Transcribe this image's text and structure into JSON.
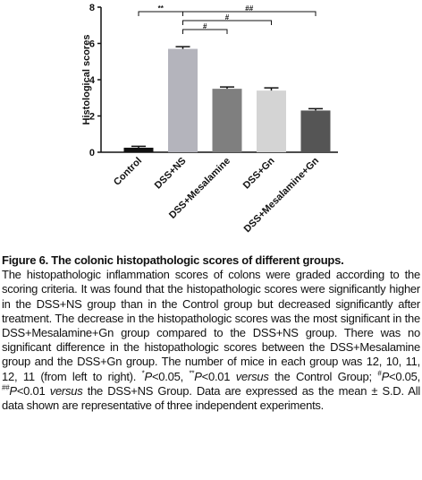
{
  "chart_data": {
    "type": "bar",
    "y_label": "Histological scores",
    "categories": [
      "Control",
      "DSS+NS",
      "DSS+Mesalamine",
      "DSS+Gn",
      "DSS+Mesalamine+Gn"
    ],
    "values": [
      0.25,
      5.7,
      3.5,
      3.4,
      2.3
    ],
    "errors": [
      0.08,
      0.12,
      0.1,
      0.15,
      0.1
    ],
    "colors": [
      "#111111",
      "#b4b4bc",
      "#7f7f7f",
      "#d4d4d4",
      "#555555"
    ],
    "ylim": [
      0,
      8
    ],
    "yticks": [
      0,
      2,
      4,
      6,
      8
    ],
    "annotations": [
      "**",
      "#",
      "#",
      "##"
    ]
  },
  "caption": {
    "title": "Figure 6. The colonic histopathologic scores of different groups.",
    "body": [
      "The histopathologic inflammation scores of colons were graded according to the scoring criteria. It was found that the histopathologic scores were significantly higher in the DSS+NS group than in the Control group but decreased significantly after treatment. The decrease in the histopathologic scores was the most significant in the DSS+Mesalamine+Gn group compared to the DSS+NS group. There was no significant difference in the histopathologic scores between the DSS+Mesalamine group and the DSS+Gn group. The number of mice in each group was 12, 10, 11, 12, 11 (from left to right). ",
      "*",
      "P",
      "<0.05, ",
      "**",
      "P",
      "<0.01 ",
      "versus",
      " the Control Group; ",
      "#",
      "P",
      "<0.05, ",
      "##",
      "P",
      "<0.01 ",
      "versus",
      " the DSS+NS Group. Data are expressed as the mean ± S.D. All data shown are representative of three independent experiments."
    ]
  }
}
